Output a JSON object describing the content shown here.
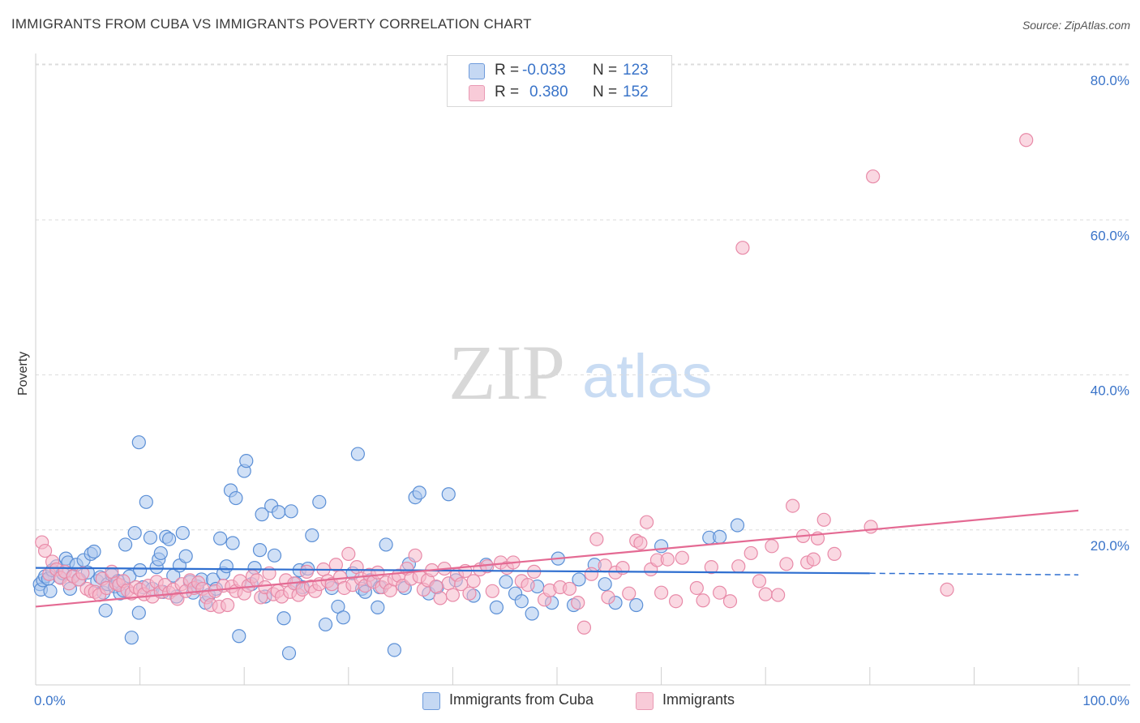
{
  "title": "IMMIGRANTS FROM CUBA VS IMMIGRANTS POVERTY CORRELATION CHART",
  "source": "Source: ZipAtlas.com",
  "watermark": {
    "zip": "ZIP",
    "atlas": "atlas"
  },
  "legend": {
    "series1": {
      "r_label": "R =",
      "r_value": "-0.033",
      "n_label": "N =",
      "n_value": "123"
    },
    "series2": {
      "r_label": "R =",
      "r_value": "0.380",
      "n_label": "N =",
      "n_value": "152"
    }
  },
  "colors": {
    "blue_fill": "#a9c7ef",
    "blue_stroke": "#5b8fd6",
    "blue_line": "#2f6fd0",
    "pink_fill": "#f5b8cb",
    "pink_stroke": "#e88aa8",
    "pink_line": "#e46a93",
    "axis_text": "#3a74c9"
  },
  "chart_data": {
    "type": "scatter",
    "title": "IMMIGRANTS FROM CUBA VS IMMIGRANTS POVERTY CORRELATION CHART",
    "xlabel": "",
    "ylabel": "Poverty",
    "xlim": [
      0,
      100
    ],
    "ylim": [
      0,
      80
    ],
    "x_tick_labels": [
      "0.0%",
      "100.0%"
    ],
    "y_ticks": [
      20,
      40,
      60,
      80
    ],
    "y_tick_labels": [
      "20.0%",
      "40.0%",
      "60.0%",
      "80.0%"
    ],
    "grid": true,
    "legend_position": "top-center",
    "series": [
      {
        "name": "Immigrants from Cuba",
        "color": "#5b8fd6",
        "trend": {
          "x": [
            0,
            80
          ],
          "y": [
            15.1,
            14.4
          ],
          "dashed_extension": {
            "x": [
              80,
              100
            ],
            "y": [
              14.4,
              14.2
            ]
          }
        },
        "points": [
          [
            0.4,
            13.0
          ],
          [
            0.5,
            12.3
          ],
          [
            0.7,
            13.5
          ],
          [
            0.9,
            14.0
          ],
          [
            1.2,
            13.7
          ],
          [
            1.4,
            12.1
          ],
          [
            1.6,
            14.8
          ],
          [
            2.0,
            15.3
          ],
          [
            2.3,
            13.9
          ],
          [
            2.6,
            14.4
          ],
          [
            2.9,
            16.3
          ],
          [
            3.1,
            15.8
          ],
          [
            3.3,
            12.4
          ],
          [
            3.6,
            14.1
          ],
          [
            3.9,
            15.5
          ],
          [
            4.2,
            13.6
          ],
          [
            4.6,
            16.1
          ],
          [
            5.0,
            14.5
          ],
          [
            5.3,
            16.9
          ],
          [
            5.6,
            17.2
          ],
          [
            5.9,
            13.4
          ],
          [
            6.2,
            13.9
          ],
          [
            6.5,
            11.9
          ],
          [
            6.7,
            9.6
          ],
          [
            6.9,
            13.0
          ],
          [
            7.3,
            14.2
          ],
          [
            7.6,
            12.7
          ],
          [
            7.9,
            13.4
          ],
          [
            8.1,
            11.8
          ],
          [
            8.4,
            12.2
          ],
          [
            8.6,
            18.1
          ],
          [
            9.0,
            14.0
          ],
          [
            9.2,
            6.1
          ],
          [
            9.5,
            19.6
          ],
          [
            9.9,
            9.3
          ],
          [
            9.9,
            31.3
          ],
          [
            10.3,
            12.6
          ],
          [
            10.6,
            23.6
          ],
          [
            11.0,
            19.0
          ],
          [
            11.2,
            12.4
          ],
          [
            11.6,
            15.2
          ],
          [
            11.8,
            16.2
          ],
          [
            12.2,
            12.0
          ],
          [
            12.5,
            19.1
          ],
          [
            12.8,
            18.8
          ],
          [
            13.2,
            14.1
          ],
          [
            13.5,
            11.4
          ],
          [
            13.8,
            15.4
          ],
          [
            14.1,
            19.6
          ],
          [
            14.4,
            16.6
          ],
          [
            14.8,
            13.3
          ],
          [
            15.1,
            11.9
          ],
          [
            15.5,
            12.7
          ],
          [
            15.9,
            13.6
          ],
          [
            16.3,
            10.6
          ],
          [
            16.6,
            11.6
          ],
          [
            17.0,
            13.6
          ],
          [
            17.3,
            12.4
          ],
          [
            17.7,
            18.9
          ],
          [
            18.0,
            14.4
          ],
          [
            18.3,
            15.3
          ],
          [
            18.7,
            25.1
          ],
          [
            18.9,
            18.3
          ],
          [
            19.2,
            24.1
          ],
          [
            19.5,
            6.3
          ],
          [
            20.0,
            27.6
          ],
          [
            20.2,
            28.9
          ],
          [
            20.7,
            13.0
          ],
          [
            21.0,
            15.1
          ],
          [
            21.5,
            17.4
          ],
          [
            21.7,
            22.0
          ],
          [
            22.0,
            11.4
          ],
          [
            22.6,
            23.1
          ],
          [
            22.9,
            16.7
          ],
          [
            23.3,
            22.3
          ],
          [
            23.8,
            8.6
          ],
          [
            24.3,
            4.1
          ],
          [
            24.5,
            22.4
          ],
          [
            25.0,
            13.1
          ],
          [
            25.3,
            14.8
          ],
          [
            25.6,
            12.6
          ],
          [
            26.1,
            15.0
          ],
          [
            26.5,
            19.3
          ],
          [
            27.2,
            23.6
          ],
          [
            27.8,
            7.8
          ],
          [
            28.4,
            12.5
          ],
          [
            29.0,
            10.1
          ],
          [
            29.5,
            8.7
          ],
          [
            30.4,
            14.4
          ],
          [
            30.9,
            29.8
          ],
          [
            31.3,
            12.4
          ],
          [
            31.6,
            12.0
          ],
          [
            32.1,
            13.5
          ],
          [
            32.8,
            10.0
          ],
          [
            33.0,
            12.6
          ],
          [
            33.6,
            18.1
          ],
          [
            34.4,
            4.5
          ],
          [
            35.4,
            12.5
          ],
          [
            35.8,
            15.6
          ],
          [
            36.4,
            24.2
          ],
          [
            36.8,
            24.8
          ],
          [
            37.7,
            11.8
          ],
          [
            38.5,
            12.6
          ],
          [
            39.6,
            24.6
          ],
          [
            40.3,
            13.5
          ],
          [
            42.0,
            11.5
          ],
          [
            43.2,
            15.5
          ],
          [
            44.2,
            10.0
          ],
          [
            45.1,
            13.3
          ],
          [
            46.0,
            11.8
          ],
          [
            46.6,
            10.8
          ],
          [
            47.6,
            9.2
          ],
          [
            48.1,
            12.7
          ],
          [
            49.5,
            10.6
          ],
          [
            50.1,
            16.3
          ],
          [
            51.6,
            10.3
          ],
          [
            52.1,
            13.6
          ],
          [
            53.6,
            15.5
          ],
          [
            54.6,
            13.0
          ],
          [
            55.6,
            10.6
          ],
          [
            57.6,
            10.3
          ],
          [
            60.0,
            17.9
          ],
          [
            64.6,
            19.0
          ],
          [
            65.6,
            19.1
          ],
          [
            67.3,
            20.6
          ],
          [
            10.0,
            14.8
          ],
          [
            12.0,
            17.0
          ]
        ]
      },
      {
        "name": "Immigrants",
        "color": "#e88aa8",
        "trend": {
          "x": [
            0,
            100
          ],
          "y": [
            10.1,
            22.5
          ]
        },
        "points": [
          [
            0.6,
            18.4
          ],
          [
            0.9,
            17.3
          ],
          [
            1.3,
            14.3
          ],
          [
            1.6,
            15.9
          ],
          [
            2.0,
            14.9
          ],
          [
            2.4,
            13.8
          ],
          [
            2.8,
            14.6
          ],
          [
            3.2,
            13.1
          ],
          [
            3.6,
            14.0
          ],
          [
            4.1,
            13.6
          ],
          [
            4.5,
            14.4
          ],
          [
            4.9,
            12.4
          ],
          [
            5.3,
            12.1
          ],
          [
            5.7,
            12.0
          ],
          [
            6.1,
            11.6
          ],
          [
            6.4,
            13.7
          ],
          [
            6.8,
            12.5
          ],
          [
            7.3,
            14.6
          ],
          [
            7.7,
            13.1
          ],
          [
            8.0,
            12.9
          ],
          [
            8.4,
            13.4
          ],
          [
            8.8,
            12.2
          ],
          [
            9.2,
            11.8
          ],
          [
            9.6,
            12.6
          ],
          [
            10.0,
            12.3
          ],
          [
            10.4,
            11.7
          ],
          [
            10.8,
            12.8
          ],
          [
            11.2,
            11.4
          ],
          [
            11.6,
            13.3
          ],
          [
            12.0,
            12.0
          ],
          [
            12.4,
            12.9
          ],
          [
            12.8,
            11.9
          ],
          [
            13.2,
            12.3
          ],
          [
            13.6,
            11.1
          ],
          [
            14.0,
            13.0
          ],
          [
            14.4,
            12.1
          ],
          [
            14.8,
            13.5
          ],
          [
            15.2,
            12.5
          ],
          [
            15.6,
            13.2
          ],
          [
            16.0,
            12.4
          ],
          [
            16.4,
            11.3
          ],
          [
            16.8,
            10.3
          ],
          [
            17.2,
            12.1
          ],
          [
            17.6,
            10.1
          ],
          [
            18.0,
            12.8
          ],
          [
            18.4,
            10.3
          ],
          [
            18.8,
            12.7
          ],
          [
            19.2,
            12.1
          ],
          [
            19.6,
            13.4
          ],
          [
            20.0,
            11.8
          ],
          [
            20.4,
            12.8
          ],
          [
            20.8,
            14.0
          ],
          [
            21.2,
            13.5
          ],
          [
            21.6,
            11.3
          ],
          [
            22.0,
            12.6
          ],
          [
            22.4,
            14.4
          ],
          [
            22.8,
            11.7
          ],
          [
            23.2,
            12.1
          ],
          [
            23.6,
            11.4
          ],
          [
            24.0,
            13.5
          ],
          [
            24.4,
            12.0
          ],
          [
            24.8,
            13.1
          ],
          [
            25.2,
            11.6
          ],
          [
            25.6,
            12.3
          ],
          [
            26.0,
            14.6
          ],
          [
            26.4,
            12.7
          ],
          [
            26.8,
            12.1
          ],
          [
            27.2,
            13.0
          ],
          [
            27.6,
            14.9
          ],
          [
            28.0,
            13.4
          ],
          [
            28.4,
            13.0
          ],
          [
            28.8,
            15.5
          ],
          [
            29.2,
            13.9
          ],
          [
            29.6,
            12.5
          ],
          [
            30.0,
            16.9
          ],
          [
            30.4,
            12.9
          ],
          [
            30.8,
            15.2
          ],
          [
            31.2,
            13.7
          ],
          [
            31.6,
            12.8
          ],
          [
            32.0,
            14.2
          ],
          [
            32.4,
            13.3
          ],
          [
            32.8,
            14.5
          ],
          [
            33.2,
            12.6
          ],
          [
            33.6,
            13.2
          ],
          [
            34.0,
            12.2
          ],
          [
            34.4,
            13.6
          ],
          [
            34.8,
            14.1
          ],
          [
            35.2,
            12.8
          ],
          [
            35.6,
            15.0
          ],
          [
            36.0,
            13.7
          ],
          [
            36.4,
            16.7
          ],
          [
            36.8,
            14.0
          ],
          [
            37.2,
            12.3
          ],
          [
            37.6,
            13.5
          ],
          [
            38.0,
            14.8
          ],
          [
            38.4,
            12.7
          ],
          [
            38.8,
            11.2
          ],
          [
            39.2,
            15.0
          ],
          [
            39.6,
            13.1
          ],
          [
            40.0,
            11.6
          ],
          [
            40.4,
            14.2
          ],
          [
            40.8,
            13.0
          ],
          [
            41.2,
            14.7
          ],
          [
            41.6,
            11.8
          ],
          [
            42.0,
            13.4
          ],
          [
            42.6,
            14.9
          ],
          [
            43.3,
            15.3
          ],
          [
            43.8,
            12.1
          ],
          [
            44.6,
            15.8
          ],
          [
            45.2,
            15.1
          ],
          [
            45.8,
            15.8
          ],
          [
            46.6,
            13.4
          ],
          [
            47.2,
            12.9
          ],
          [
            47.8,
            14.6
          ],
          [
            48.8,
            11.0
          ],
          [
            49.3,
            12.2
          ],
          [
            50.3,
            12.6
          ],
          [
            51.2,
            12.4
          ],
          [
            52.0,
            10.6
          ],
          [
            52.6,
            7.4
          ],
          [
            53.3,
            14.3
          ],
          [
            53.8,
            18.8
          ],
          [
            54.6,
            15.4
          ],
          [
            54.9,
            11.3
          ],
          [
            55.6,
            14.5
          ],
          [
            56.3,
            15.1
          ],
          [
            56.9,
            11.8
          ],
          [
            57.6,
            18.6
          ],
          [
            58.0,
            18.3
          ],
          [
            58.6,
            21.0
          ],
          [
            59.0,
            14.9
          ],
          [
            59.6,
            16.1
          ],
          [
            60.0,
            11.9
          ],
          [
            60.6,
            16.2
          ],
          [
            61.4,
            10.8
          ],
          [
            62.0,
            16.4
          ],
          [
            63.4,
            12.5
          ],
          [
            64.0,
            10.9
          ],
          [
            64.8,
            15.2
          ],
          [
            65.6,
            11.9
          ],
          [
            66.6,
            10.8
          ],
          [
            67.4,
            15.3
          ],
          [
            68.6,
            17.0
          ],
          [
            69.4,
            13.4
          ],
          [
            70.0,
            11.7
          ],
          [
            70.6,
            17.9
          ],
          [
            71.2,
            11.6
          ],
          [
            72.0,
            15.6
          ],
          [
            72.6,
            23.1
          ],
          [
            73.6,
            19.2
          ],
          [
            74.0,
            15.8
          ],
          [
            74.6,
            16.2
          ],
          [
            75.6,
            21.3
          ],
          [
            76.6,
            16.9
          ],
          [
            80.1,
            20.4
          ],
          [
            87.4,
            12.3
          ],
          [
            75.0,
            18.9
          ],
          [
            95.0,
            70.3
          ],
          [
            80.3,
            65.6
          ],
          [
            67.8,
            56.4
          ]
        ]
      }
    ]
  }
}
